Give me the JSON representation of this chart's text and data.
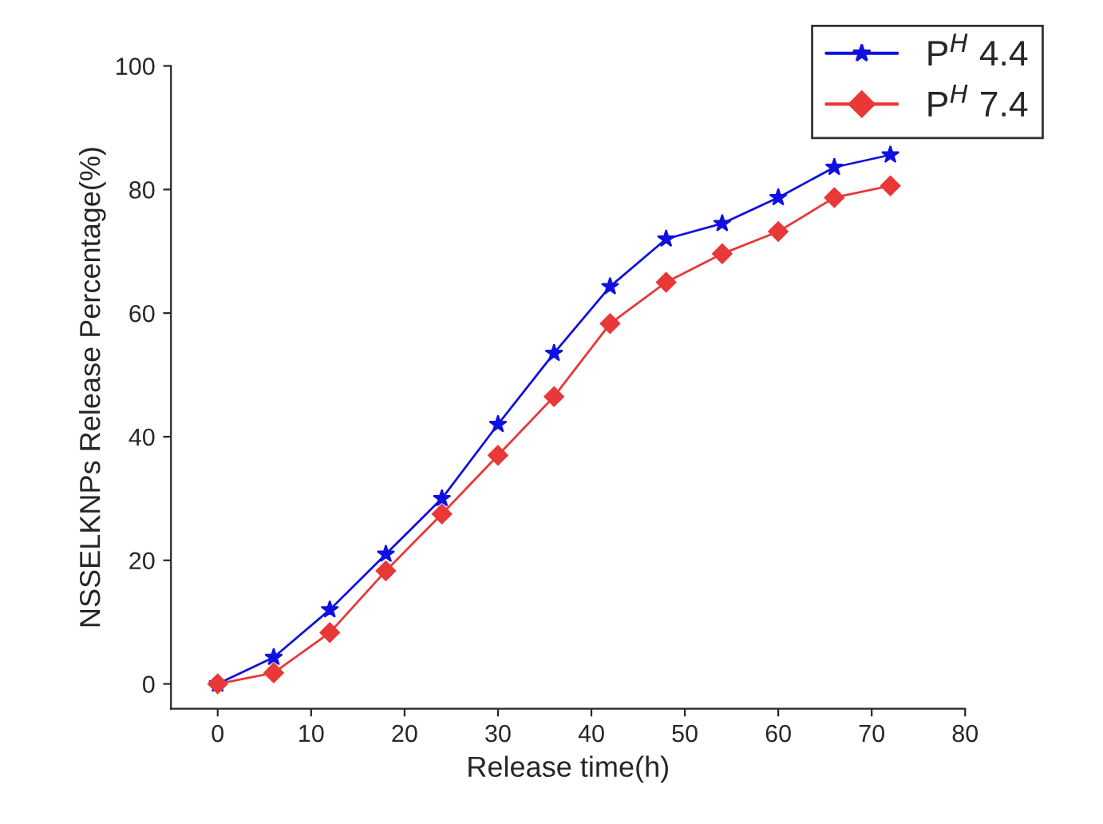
{
  "chart_data": {
    "type": "line",
    "xlabel": "Release time(h)",
    "ylabel": "NSSELKNPs Release Percentage(%)",
    "x": [
      0,
      6,
      12,
      18,
      24,
      30,
      36,
      42,
      48,
      54,
      60,
      66,
      72
    ],
    "series": [
      {
        "name": "P$^{H}$ 4.4",
        "color": "#1010e0",
        "marker": "star",
        "values": [
          0,
          4.3,
          12,
          21,
          30,
          42,
          53.5,
          64.3,
          72,
          74.5,
          78.7,
          83.6,
          85.6
        ]
      },
      {
        "name": "P$^{H}$ 7.4",
        "color": "#e83838",
        "marker": "diamond",
        "values": [
          0,
          1.8,
          8.3,
          18.3,
          27.5,
          37,
          46.5,
          58.3,
          65,
          69.6,
          73.2,
          78.7,
          80.6
        ]
      }
    ],
    "xlim": [
      -5,
      80
    ],
    "ylim": [
      -4,
      100
    ],
    "xticks": [
      0,
      10,
      20,
      30,
      40,
      50,
      60,
      70,
      80
    ],
    "yticks": [
      0,
      20,
      40,
      60,
      80,
      100
    ],
    "grid": false,
    "legend": "top right",
    "line_style": "solid"
  }
}
